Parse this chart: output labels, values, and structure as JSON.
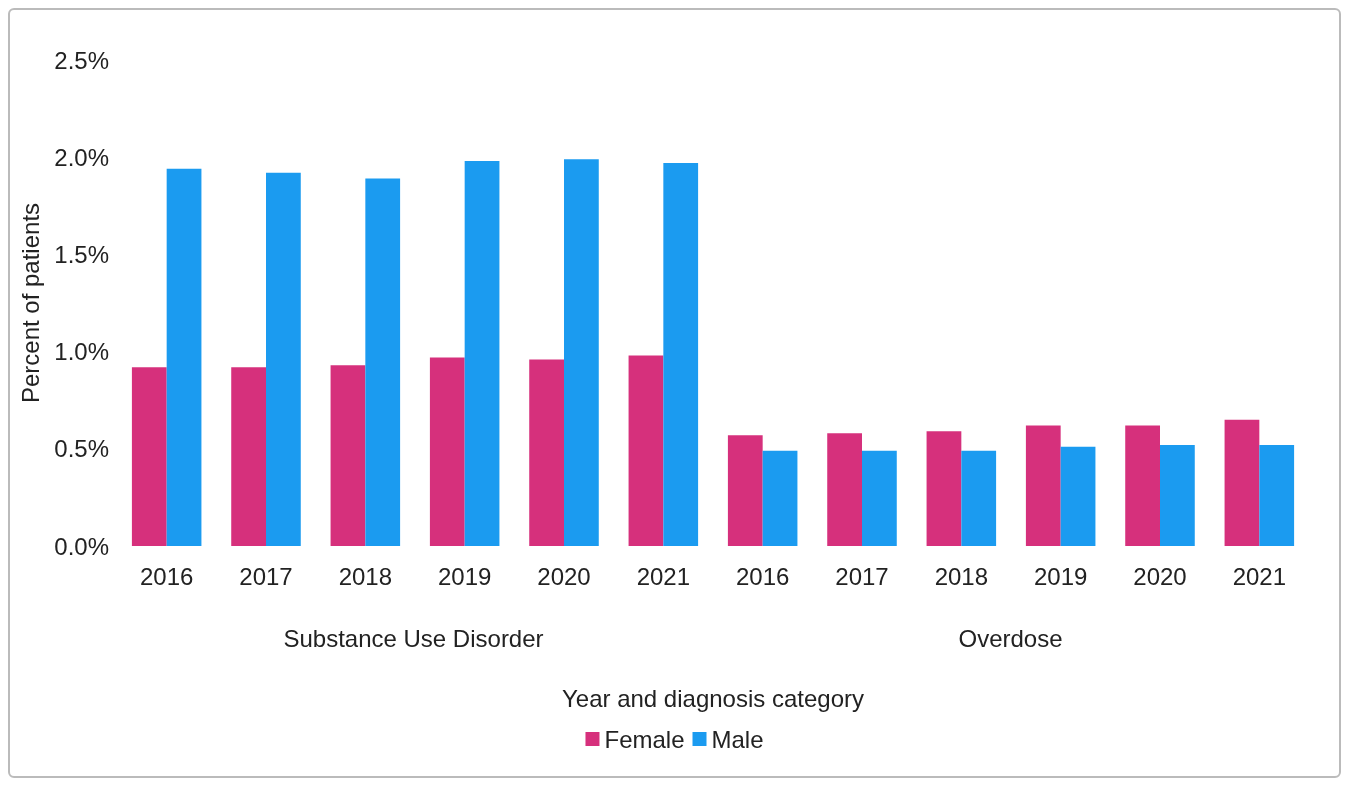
{
  "chart_data": {
    "type": "bar",
    "xlabel": "Year and diagnosis category",
    "ylabel": "Percent of patients",
    "categories": [
      "2016",
      "2017",
      "2018",
      "2019",
      "2020",
      "2021",
      "2016",
      "2017",
      "2018",
      "2019",
      "2020",
      "2021"
    ],
    "series": [
      {
        "name": "Female",
        "color": "#d6307c",
        "values": [
          0.92,
          0.92,
          0.93,
          0.97,
          0.96,
          0.98,
          0.57,
          0.58,
          0.59,
          0.62,
          0.62,
          0.65
        ]
      },
      {
        "name": "Male",
        "color": "#1b9bf0",
        "values": [
          1.94,
          1.92,
          1.89,
          1.98,
          1.99,
          1.97,
          0.49,
          0.49,
          0.49,
          0.51,
          0.52,
          0.52
        ]
      }
    ],
    "ylim": [
      0,
      2.5
    ],
    "yticks": [
      {
        "value": 0,
        "label": "0.0%"
      },
      {
        "value": 0.5,
        "label": "0.5%"
      },
      {
        "value": 1,
        "label": "1.0%"
      },
      {
        "value": 1.5,
        "label": "1.5%"
      },
      {
        "value": 2,
        "label": "2.0%"
      },
      {
        "value": 2.5,
        "label": "2.5%"
      }
    ],
    "annotations": [
      "Substance Use Disorder",
      "Overdose"
    ],
    "grid": false,
    "legend": "bottom"
  }
}
